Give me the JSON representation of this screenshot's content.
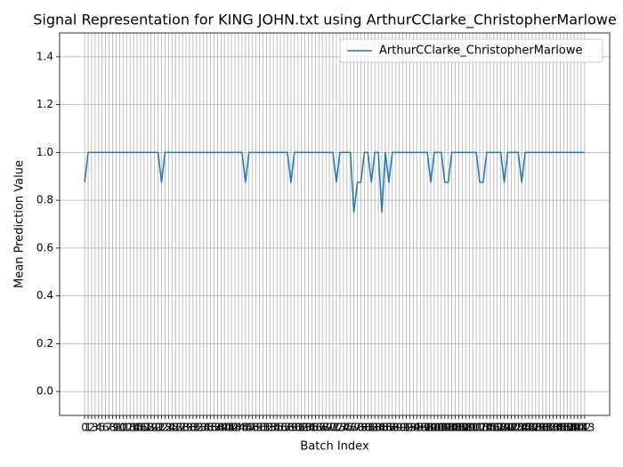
{
  "chart_data": {
    "type": "line",
    "title": "Signal Representation for KING JOHN.txt using ArthurCClarke_ChristopherMarlowe",
    "xlabel": "Batch Index",
    "ylabel": "Mean Prediction Value",
    "x": [
      0,
      1,
      2,
      3,
      4,
      5,
      6,
      7,
      8,
      9,
      10,
      11,
      12,
      13,
      14,
      15,
      16,
      17,
      18,
      19,
      20,
      21,
      22,
      23,
      24,
      25,
      26,
      27,
      28,
      29,
      30,
      31,
      32,
      33,
      34,
      35,
      36,
      37,
      38,
      39,
      40,
      41,
      42,
      43,
      44,
      45,
      46,
      47,
      48,
      49,
      50,
      51,
      52,
      53,
      54,
      55,
      56,
      57,
      58,
      59,
      60,
      61,
      62,
      63,
      64,
      65,
      66,
      67,
      68,
      69,
      70,
      71,
      72,
      73,
      74,
      75,
      76,
      77,
      78,
      79,
      80,
      81,
      82,
      83,
      84,
      85,
      86,
      87,
      88,
      89,
      90,
      91,
      92,
      93,
      94,
      95,
      96,
      97,
      98,
      99,
      100,
      101,
      102,
      103,
      104,
      105,
      106,
      107,
      108,
      109,
      110,
      111,
      112,
      113,
      114,
      115,
      116,
      117,
      118,
      119,
      120,
      121,
      122,
      123,
      124,
      125,
      126,
      127,
      128,
      129,
      130,
      131,
      132,
      133,
      134,
      135,
      136,
      137,
      138,
      139,
      140,
      141,
      142,
      143
    ],
    "series": [
      {
        "name": "ArthurCClarke_ChristopherMarlowe",
        "color": "#1f77b4",
        "values": [
          0.875,
          1,
          1,
          1,
          1,
          1,
          1,
          1,
          1,
          1,
          1,
          1,
          1,
          1,
          1,
          1,
          1,
          1,
          1,
          1,
          1,
          1,
          0.875,
          1,
          1,
          1,
          1,
          1,
          1,
          1,
          1,
          1,
          1,
          1,
          1,
          1,
          1,
          1,
          1,
          1,
          1,
          1,
          1,
          1,
          1,
          1,
          0.875,
          1,
          1,
          1,
          1,
          1,
          1,
          1,
          1,
          1,
          1,
          1,
          1,
          0.875,
          1,
          1,
          1,
          1,
          1,
          1,
          1,
          1,
          1,
          1,
          1,
          1,
          0.875,
          1,
          1,
          1,
          1,
          0.75,
          0.875,
          0.875,
          1,
          1,
          0.875,
          1,
          1,
          0.75,
          1,
          0.875,
          1,
          1,
          1,
          1,
          1,
          1,
          1,
          1,
          1,
          1,
          1,
          0.875,
          1,
          1,
          1,
          0.875,
          0.875,
          1,
          1,
          1,
          1,
          1,
          1,
          1,
          1,
          0.875,
          0.875,
          1,
          1,
          1,
          1,
          1,
          0.875,
          1,
          1,
          1,
          1,
          0.875,
          1,
          1,
          1,
          1,
          1,
          1,
          1,
          1,
          1,
          1,
          1,
          1,
          1,
          1,
          1,
          1,
          1,
          1
        ]
      }
    ],
    "xlim": [
      -7.15,
      150.15
    ],
    "xticks": [
      0,
      1,
      2,
      3,
      4,
      5,
      6,
      7,
      8,
      9,
      10,
      11,
      12,
      13,
      14,
      15,
      16,
      17,
      18,
      19,
      20,
      21,
      22,
      23,
      24,
      25,
      26,
      27,
      28,
      29,
      30,
      31,
      32,
      33,
      34,
      35,
      36,
      37,
      38,
      39,
      40,
      41,
      42,
      43,
      44,
      45,
      46,
      47,
      48,
      49,
      50,
      51,
      52,
      53,
      54,
      55,
      56,
      57,
      58,
      59,
      60,
      61,
      62,
      63,
      64,
      65,
      66,
      67,
      68,
      69,
      70,
      71,
      72,
      73,
      74,
      75,
      76,
      77,
      78,
      79,
      80,
      81,
      82,
      83,
      84,
      85,
      86,
      87,
      88,
      89,
      90,
      91,
      92,
      93,
      94,
      95,
      96,
      97,
      98,
      99,
      100,
      101,
      102,
      103,
      104,
      105,
      106,
      107,
      108,
      109,
      110,
      111,
      112,
      113,
      114,
      115,
      116,
      117,
      118,
      119,
      120,
      121,
      122,
      123,
      124,
      125,
      126,
      127,
      128,
      129,
      130,
      131,
      132,
      133,
      134,
      135,
      136,
      137,
      138,
      139,
      140,
      141,
      142,
      143
    ],
    "ylim": [
      -0.1,
      1.5
    ],
    "yticks": [
      {
        "value": 0,
        "label": "0.0"
      },
      {
        "value": 0.2,
        "label": "0.2"
      },
      {
        "value": 0.4,
        "label": "0.4"
      },
      {
        "value": 0.6,
        "label": "0.6"
      },
      {
        "value": 0.8,
        "label": "0.8"
      },
      {
        "value": 1,
        "label": "1.0"
      },
      {
        "value": 1.2,
        "label": "1.2"
      },
      {
        "value": 1.4,
        "label": "1.4"
      }
    ],
    "grid": true,
    "legend": "upper right"
  }
}
